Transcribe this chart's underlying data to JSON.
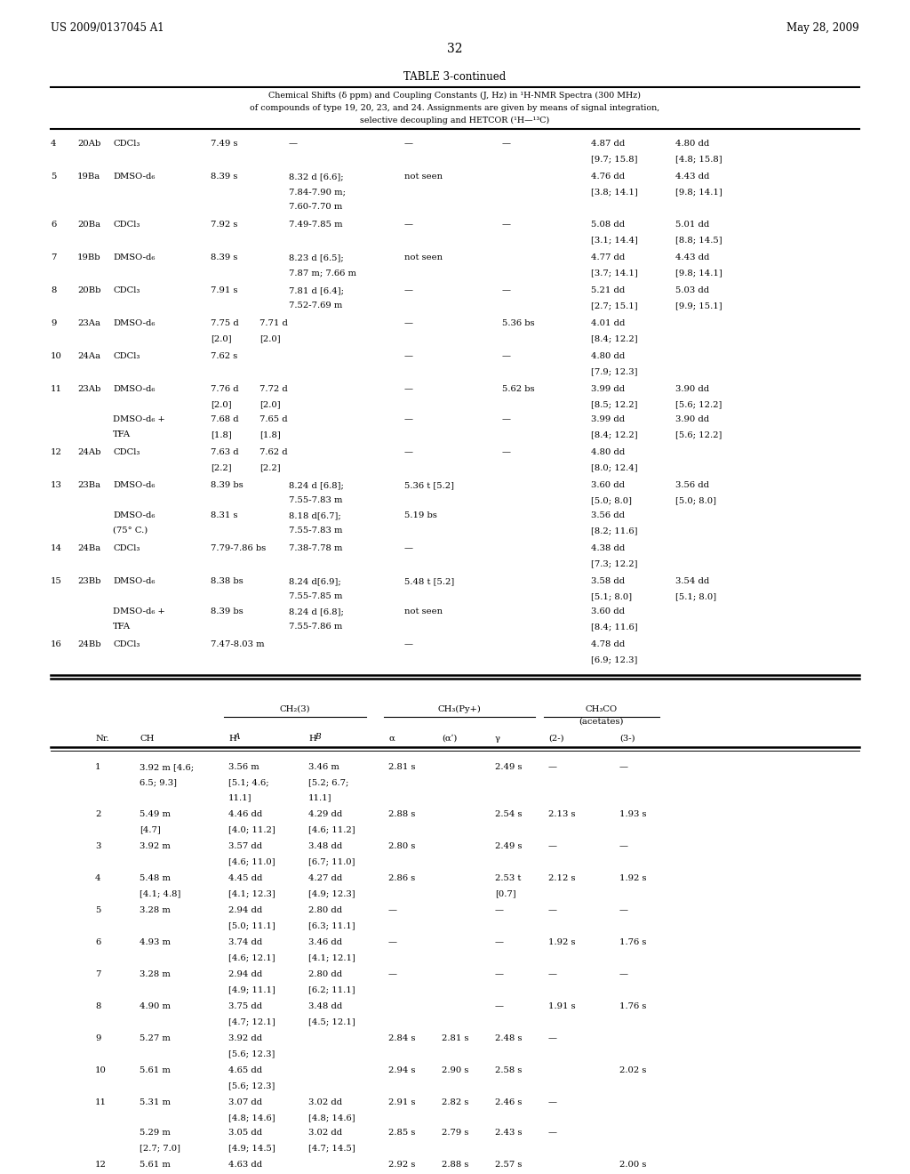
{
  "title_left": "US 2009/0137045 A1",
  "title_right": "May 28, 2009",
  "page_num": "32",
  "table_title": "TABLE 3-continued",
  "sub1": "Chemical Shifts (δ ppm) and Coupling Constants (J, Hz) in ¹H-NMR Spectra (300 MHz)",
  "sub2": "of compounds of type 19, 20, 23, and 24. Assignments are given by means of signal integration,",
  "sub3": "selective decoupling and HETCOR (¹H—¹³C)",
  "bg_color": "#ffffff",
  "text_color": "#000000",
  "fs": 7.2,
  "fs_small": 6.5,
  "fs_title": 8.5,
  "fs_sub": 6.8
}
